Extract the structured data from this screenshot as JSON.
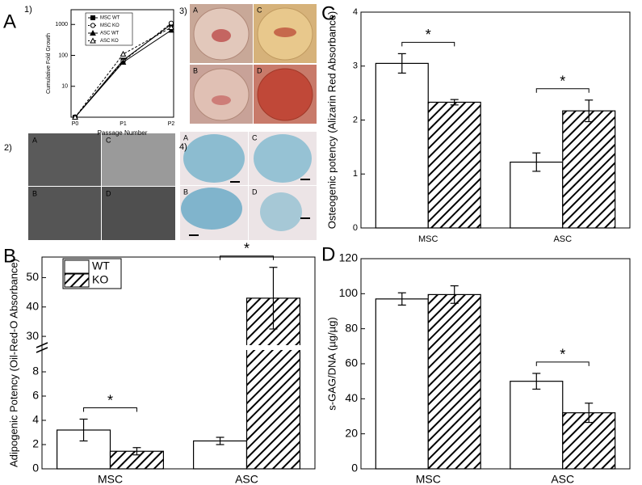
{
  "panels": [
    "A",
    "B",
    "C",
    "D"
  ],
  "sub_panels": [
    "1)",
    "2)",
    "3)",
    "4)"
  ],
  "photo_labels": {
    "culture": [
      "A",
      "C",
      "B",
      "D"
    ],
    "alizarin": [
      "A",
      "C",
      "B",
      "D"
    ],
    "alcian": [
      "A",
      "C",
      "B",
      "D"
    ]
  },
  "chart_data": [
    {
      "type": "line",
      "x_label": "Passage Number",
      "y_label": "Cumulative Fold Growth",
      "categories": [
        "P0",
        "P1",
        "P2"
      ],
      "ylog": true,
      "ylim": [
        1,
        3000
      ],
      "yticks": [
        10,
        100,
        1000
      ],
      "legend": "upper left",
      "series": [
        {
          "name": "MSC WT",
          "color": "#000000",
          "marker": "square",
          "filled": true,
          "dashed": false,
          "values": [
            1,
            70,
            1000
          ]
        },
        {
          "name": "MSC KO",
          "color": "#000000",
          "marker": "circle",
          "filled": false,
          "dashed": true,
          "values": [
            1,
            65,
            1100
          ]
        },
        {
          "name": "ASC WT",
          "color": "#000000",
          "marker": "triangle",
          "filled": true,
          "dashed": false,
          "values": [
            1,
            60,
            650
          ]
        },
        {
          "name": "ASC KO",
          "color": "#000000",
          "marker": "triangle",
          "filled": false,
          "dashed": true,
          "values": [
            1,
            110,
            800
          ]
        }
      ]
    },
    {
      "type": "bar",
      "y_label": "Adipogenic Potency (Oil-Red-O Absorbance)",
      "categories": [
        "MSC",
        "ASC"
      ],
      "ylim": [
        0,
        57
      ],
      "ybreak": [
        9.8,
        27
      ],
      "yticks": [
        0,
        2,
        4,
        6,
        8,
        30,
        40,
        50
      ],
      "legend": "upper left",
      "series": [
        {
          "name": "WT",
          "color": "#ffffff",
          "hatch": false,
          "values": [
            3.2,
            2.3
          ],
          "errors": [
            0.9,
            0.3
          ]
        },
        {
          "name": "KO",
          "color": "#000000",
          "hatch": true,
          "values": [
            1.45,
            43
          ],
          "errors": [
            0.3,
            10.5
          ]
        }
      ],
      "annotations": [
        {
          "text": "*",
          "category": "MSC"
        },
        {
          "text": "*",
          "category": "ASC"
        }
      ]
    },
    {
      "type": "bar",
      "y_label": "Osteogenic potency (Alizarin Red Absorbance)",
      "categories": [
        "MSC",
        "ASC"
      ],
      "ylim": [
        0,
        4
      ],
      "yticks": [
        0,
        1,
        2,
        3,
        4
      ],
      "series": [
        {
          "color": "#ffffff",
          "hatch": false,
          "values": [
            3.05,
            1.22
          ],
          "errors": [
            0.18,
            0.17
          ]
        },
        {
          "color": "#000000",
          "hatch": true,
          "values": [
            2.33,
            2.17
          ],
          "errors": [
            0.05,
            0.2
          ]
        }
      ],
      "annotations": [
        {
          "text": "*",
          "category": "MSC"
        },
        {
          "text": "*",
          "category": "ASC"
        }
      ]
    },
    {
      "type": "bar",
      "y_label": "s-GAG/DNA (µg/µg)",
      "categories": [
        "MSC",
        "ASC"
      ],
      "ylim": [
        0,
        120
      ],
      "yticks": [
        0,
        20,
        40,
        60,
        80,
        100,
        120
      ],
      "series": [
        {
          "color": "#ffffff",
          "hatch": false,
          "values": [
            97,
            50
          ],
          "errors": [
            3.5,
            4.5
          ]
        },
        {
          "color": "#000000",
          "hatch": true,
          "values": [
            99.5,
            32
          ],
          "errors": [
            5,
            5.5
          ]
        }
      ],
      "annotations": [
        {
          "text": "*",
          "category": "ASC"
        }
      ]
    }
  ]
}
